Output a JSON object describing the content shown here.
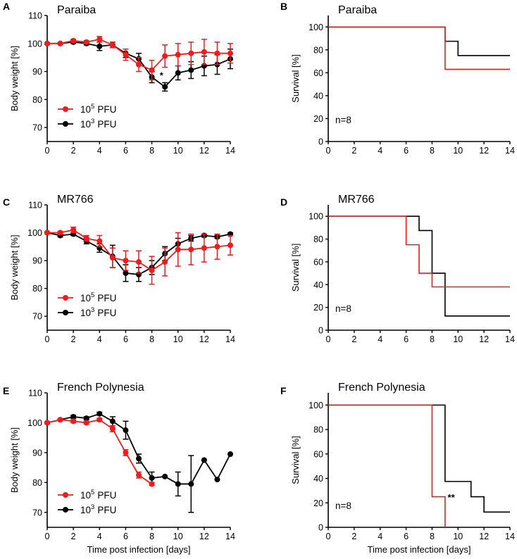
{
  "colors": {
    "series_1e5": "#ee1c1c",
    "series_1e3": "#000000",
    "axis": "#000000"
  },
  "common": {
    "body_weight_ylabel": "Body weight  [%]",
    "survival_ylabel": "Survival [%]",
    "xlabel": "Time post infection [days]",
    "legend_1e5_base": "10",
    "legend_1e5_exp": "5",
    "legend_1e3_base": "10",
    "legend_1e3_exp": "3",
    "legend_unit": "PFU",
    "n_label": "n=8"
  },
  "chart_data": [
    {
      "panel": "A",
      "type": "line",
      "title": "Paraiba",
      "ylabel": "Body weight  [%]",
      "xlabel": "",
      "xlim": [
        0,
        14
      ],
      "ylim": [
        65,
        110
      ],
      "xticks": [
        0,
        2,
        4,
        6,
        8,
        10,
        12,
        14
      ],
      "yticks": [
        70,
        80,
        90,
        100,
        110
      ],
      "legend": "bottom-left",
      "annotations": [
        {
          "text": "*",
          "x": 8.6,
          "y": 87.5
        }
      ],
      "series": [
        {
          "name": "10^5 PFU",
          "color": "#ee1c1c",
          "x": [
            0,
            1,
            2,
            3,
            4,
            5,
            6,
            7,
            8,
            9,
            10,
            11,
            12,
            13,
            14
          ],
          "y": [
            100,
            100,
            101,
            100.5,
            101.5,
            99.5,
            96,
            92.5,
            90.5,
            95.5,
            96,
            96.5,
            97,
            96.5,
            96.5
          ],
          "err": [
            0.3,
            0.3,
            0.5,
            0.5,
            1,
            1,
            2,
            2.5,
            3.5,
            4,
            4,
            4,
            4.5,
            4,
            3.5
          ]
        },
        {
          "name": "10^3 PFU",
          "color": "#000000",
          "x": [
            0,
            1,
            2,
            3,
            4,
            5,
            6,
            7,
            8,
            9,
            10,
            11,
            12,
            13,
            14
          ],
          "y": [
            100,
            100,
            100.5,
            100,
            99,
            99.5,
            96.5,
            94.5,
            88,
            84.5,
            89.5,
            90.5,
            92,
            92.5,
            94.5
          ],
          "err": [
            0.3,
            0.3,
            0.5,
            0.5,
            1.5,
            1,
            1.5,
            2,
            2,
            1.5,
            2.5,
            3,
            3.5,
            3.5,
            3.5
          ]
        }
      ]
    },
    {
      "panel": "B",
      "type": "line",
      "title": "Paraiba",
      "ylabel": "Survival [%]",
      "xlabel": "",
      "xlim": [
        0,
        14
      ],
      "ylim": [
        0,
        110
      ],
      "xticks": [
        0,
        2,
        4,
        6,
        8,
        10,
        12,
        14
      ],
      "yticks": [
        0,
        20,
        40,
        60,
        80,
        100
      ],
      "note": "n=8",
      "step": true,
      "series": [
        {
          "name": "10^5 PFU",
          "color": "#ee1c1c",
          "x": [
            0,
            9,
            9,
            14
          ],
          "y": [
            100,
            100,
            63,
            63
          ]
        },
        {
          "name": "10^3 PFU",
          "color": "#000000",
          "x": [
            0,
            9,
            9,
            10,
            10,
            14
          ],
          "y": [
            100,
            100,
            87.5,
            87.5,
            75,
            75
          ]
        }
      ]
    },
    {
      "panel": "C",
      "type": "line",
      "title": "MR766",
      "ylabel": "Body weight  [%]",
      "xlabel": "",
      "xlim": [
        0,
        14
      ],
      "ylim": [
        65,
        110
      ],
      "xticks": [
        0,
        2,
        4,
        6,
        8,
        10,
        12,
        14
      ],
      "yticks": [
        70,
        80,
        90,
        100,
        110
      ],
      "legend": "bottom-left",
      "series": [
        {
          "name": "10^5 PFU",
          "color": "#ee1c1c",
          "x": [
            0,
            1,
            2,
            3,
            4,
            5,
            6,
            7,
            8,
            9,
            10,
            11,
            12,
            13,
            14
          ],
          "y": [
            100,
            100,
            101,
            98,
            97,
            91,
            90,
            89.5,
            86.5,
            89.5,
            94,
            94,
            94.5,
            95,
            95.5
          ],
          "err": [
            0.3,
            0.5,
            1,
            1,
            2,
            3.5,
            3.5,
            4,
            5,
            5,
            6,
            5.5,
            5,
            4.5,
            3.5
          ]
        },
        {
          "name": "10^3 PFU",
          "color": "#000000",
          "x": [
            0,
            1,
            2,
            3,
            4,
            5,
            6,
            7,
            8,
            9,
            10,
            11,
            12,
            13,
            14
          ],
          "y": [
            100,
            99,
            99.5,
            97,
            94.5,
            91.5,
            85.5,
            85,
            87.5,
            92.5,
            96,
            98,
            99,
            98.5,
            99.5
          ],
          "err": [
            0.3,
            0.5,
            0.5,
            1,
            1.5,
            4,
            3,
            2.5,
            2.5,
            2.5,
            2,
            1,
            0.5,
            0.5,
            0.5
          ]
        }
      ]
    },
    {
      "panel": "D",
      "type": "line",
      "title": "MR766",
      "ylabel": "Survival [%]",
      "xlabel": "",
      "xlim": [
        0,
        14
      ],
      "ylim": [
        0,
        110
      ],
      "xticks": [
        0,
        2,
        4,
        6,
        8,
        10,
        12,
        14
      ],
      "yticks": [
        0,
        20,
        40,
        60,
        80,
        100
      ],
      "note": "n=8",
      "step": true,
      "series": [
        {
          "name": "10^5 PFU",
          "color": "#ee1c1c",
          "x": [
            0,
            6,
            6,
            7,
            7,
            8,
            8,
            14
          ],
          "y": [
            100,
            100,
            75,
            75,
            50,
            50,
            38,
            38
          ]
        },
        {
          "name": "10^3 PFU",
          "color": "#000000",
          "x": [
            0,
            7,
            7,
            8,
            8,
            9,
            9,
            14
          ],
          "y": [
            100,
            100,
            87.5,
            87.5,
            50,
            50,
            12.5,
            12.5
          ]
        }
      ]
    },
    {
      "panel": "E",
      "type": "line",
      "title": "French Polynesia",
      "ylabel": "Body weight  [%]",
      "xlabel": "Time post infection [days]",
      "xlim": [
        0,
        14
      ],
      "ylim": [
        65,
        110
      ],
      "xticks": [
        0,
        2,
        4,
        6,
        8,
        10,
        12,
        14
      ],
      "yticks": [
        70,
        80,
        90,
        100,
        110
      ],
      "legend": "bottom-left",
      "series": [
        {
          "name": "10^5 PFU",
          "color": "#ee1c1c",
          "x": [
            0,
            1,
            2,
            3,
            4,
            5,
            6,
            7,
            8
          ],
          "y": [
            100,
            101,
            100.5,
            100,
            101,
            98,
            90,
            82.5,
            79.5
          ],
          "err": [
            0.3,
            0.3,
            0.5,
            0.5,
            0.5,
            1,
            1,
            1,
            0.5
          ]
        },
        {
          "name": "10^3 PFU",
          "color": "#000000",
          "x": [
            0,
            1,
            2,
            3,
            4,
            5,
            6,
            7,
            8,
            9,
            10,
            11,
            12,
            13,
            14
          ],
          "y": [
            100,
            101,
            102,
            101.5,
            103,
            100.5,
            97.5,
            88,
            81.5,
            82,
            79.5,
            79.5,
            87.5,
            81,
            89.5
          ],
          "err": [
            0.3,
            0.3,
            0.5,
            0.5,
            0.5,
            1.5,
            3,
            1.5,
            2,
            0,
            4,
            9.5,
            0,
            0,
            0
          ]
        }
      ]
    },
    {
      "panel": "F",
      "type": "line",
      "title": "French Polynesia",
      "ylabel": "Survival [%]",
      "xlabel": "Time post infection [days]",
      "xlim": [
        0,
        14
      ],
      "ylim": [
        0,
        110
      ],
      "xticks": [
        0,
        2,
        4,
        6,
        8,
        10,
        12,
        14
      ],
      "yticks": [
        0,
        20,
        40,
        60,
        80,
        100
      ],
      "note": "n=8",
      "step": true,
      "annotations": [
        {
          "text": "**",
          "x": 9.2,
          "y": 22
        }
      ],
      "series": [
        {
          "name": "10^5 PFU",
          "color": "#ee1c1c",
          "x": [
            0,
            8,
            8,
            9,
            9
          ],
          "y": [
            100,
            100,
            25,
            25,
            0
          ]
        },
        {
          "name": "10^3 PFU",
          "color": "#000000",
          "x": [
            0,
            9,
            9,
            11,
            11,
            12,
            12,
            14
          ],
          "y": [
            100,
            100,
            37.5,
            37.5,
            25,
            25,
            12.5,
            12.5
          ]
        }
      ]
    }
  ]
}
